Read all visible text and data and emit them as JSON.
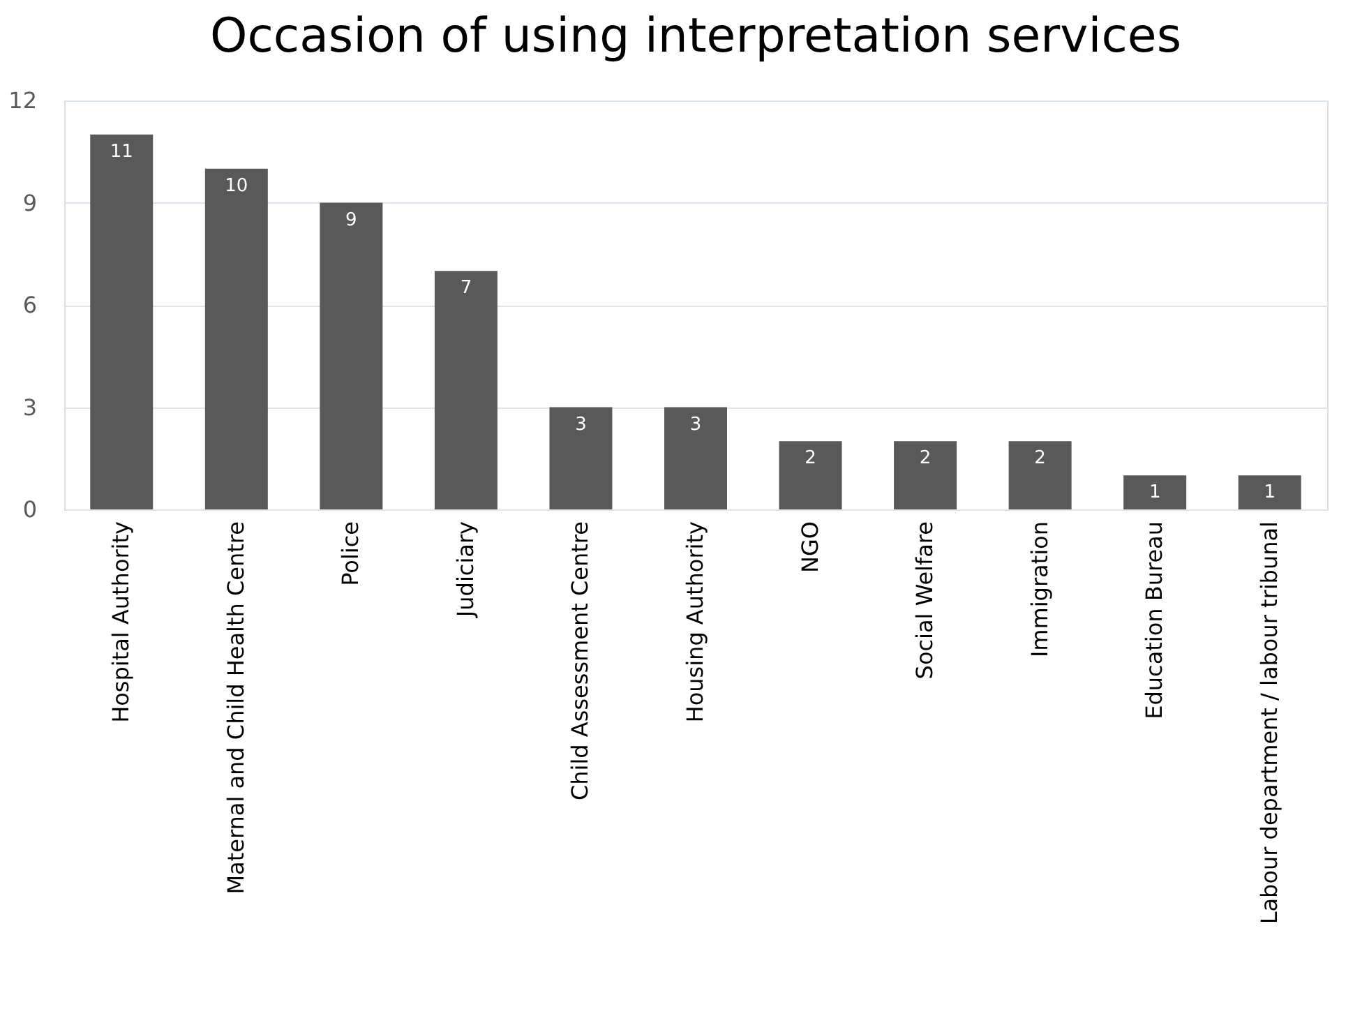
{
  "chart_data": {
    "type": "bar",
    "title": "Occasion of using interpretation services",
    "categories": [
      "Hospital Authority",
      "Maternal and Child Health Centre",
      "Police",
      "Judiciary",
      "Child Assessment Centre",
      "Housing Authority",
      "NGO",
      "Social Welfare",
      "Immigration",
      "Education Bureau",
      "Labour department / labour tribunal"
    ],
    "values": [
      11,
      10,
      9,
      7,
      3,
      3,
      2,
      2,
      2,
      1,
      1
    ],
    "color": "#595959",
    "ylim": [
      0,
      12
    ],
    "yticks": [
      0,
      3,
      6,
      9,
      12
    ],
    "grid": "y",
    "data_labels": true
  }
}
